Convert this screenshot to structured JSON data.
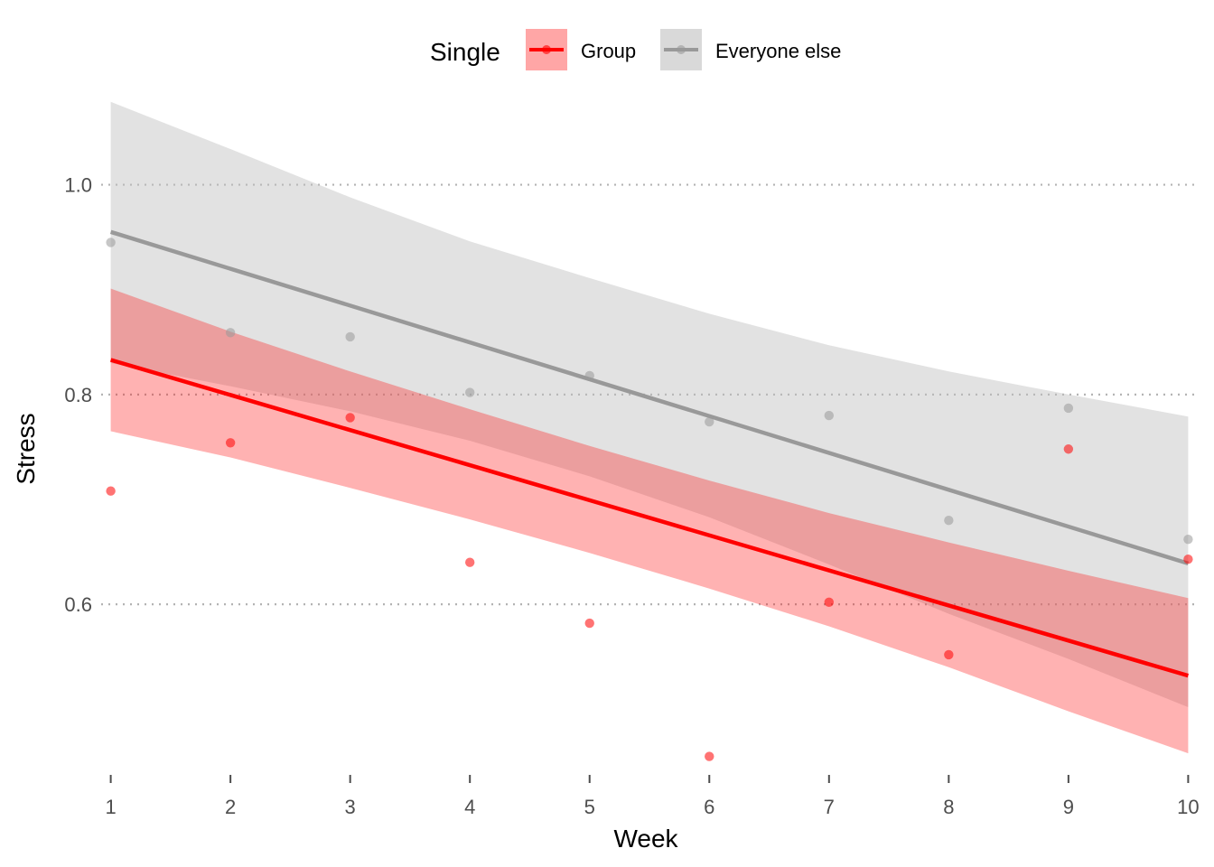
{
  "chart_data": {
    "type": "line",
    "xlabel": "Week",
    "ylabel": "Stress",
    "x_ticks": [
      "1",
      "2",
      "3",
      "4",
      "5",
      "6",
      "7",
      "8",
      "9",
      "10"
    ],
    "y_ticks": [
      "0.6",
      "0.8",
      "1.0"
    ],
    "xlim": [
      0.92,
      10.08
    ],
    "ylim": [
      0.44,
      1.09
    ],
    "grid": "horizontal dotted major lines",
    "legend": {
      "title": "Single",
      "placement": "top"
    },
    "series": [
      {
        "name": "Group",
        "color": "#ff0000",
        "ribbon_color": "#ff0000",
        "points": {
          "x": [
            1,
            2,
            3,
            4,
            5,
            6,
            7,
            8,
            9,
            10
          ],
          "y": [
            0.708,
            0.754,
            0.778,
            0.64,
            0.582,
            0.455,
            0.602,
            0.552,
            0.748,
            0.643
          ]
        },
        "fit": {
          "x": [
            1,
            10
          ],
          "y": [
            0.833,
            0.532
          ]
        },
        "ribbon": {
          "x": [
            1,
            2,
            3,
            4,
            5,
            6,
            7,
            8,
            9,
            10
          ],
          "lower": [
            0.765,
            0.74,
            0.711,
            0.681,
            0.649,
            0.615,
            0.579,
            0.54,
            0.498,
            0.458
          ],
          "upper": [
            0.901,
            0.86,
            0.822,
            0.786,
            0.751,
            0.718,
            0.687,
            0.659,
            0.632,
            0.606
          ]
        }
      },
      {
        "name": "Everyone else",
        "color": "#999999",
        "ribbon_color": "#bfbfbf",
        "points": {
          "x": [
            1,
            2,
            3,
            4,
            5,
            6,
            7,
            8,
            9,
            10
          ],
          "y": [
            0.945,
            0.859,
            0.855,
            0.802,
            0.818,
            0.774,
            0.78,
            0.68,
            0.787,
            0.662
          ]
        },
        "fit": {
          "x": [
            1,
            10
          ],
          "y": [
            0.955,
            0.639
          ]
        },
        "ribbon": {
          "x": [
            1,
            2,
            3,
            4,
            5,
            6,
            7,
            8,
            9,
            10
          ],
          "lower": [
            0.83,
            0.808,
            0.784,
            0.756,
            0.722,
            0.683,
            0.638,
            0.591,
            0.548,
            0.502
          ],
          "upper": [
            1.079,
            1.034,
            0.988,
            0.946,
            0.911,
            0.877,
            0.847,
            0.822,
            0.8,
            0.779
          ]
        }
      }
    ]
  }
}
